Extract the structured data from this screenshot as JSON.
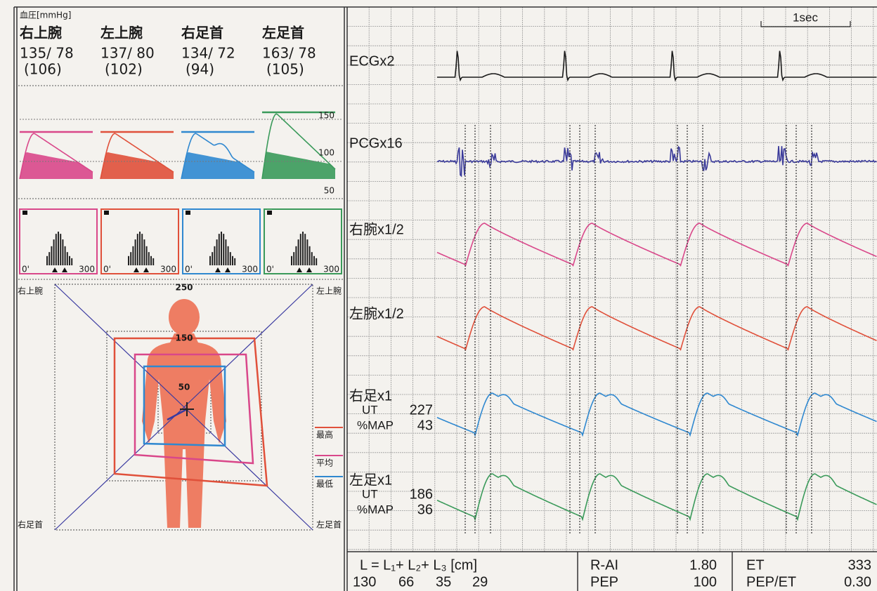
{
  "header": {
    "title": "血圧[mmHg]"
  },
  "limbs": [
    {
      "name": "右上腕",
      "pressure": "135/ 78",
      "mean": "(106)",
      "color": "#d9478a"
    },
    {
      "name": "左上腕",
      "pressure": "137/ 80",
      "mean": "(102)",
      "color": "#e0503a"
    },
    {
      "name": "右足首",
      "pressure": "134/ 72",
      "mean": "(94)",
      "color": "#2f88d0"
    },
    {
      "name": "左足首",
      "pressure": "163/ 78",
      "mean": "(105)",
      "color": "#3a9a5a"
    }
  ],
  "waveform_scale": [
    "150",
    "100",
    "50"
  ],
  "histogram_axis": {
    "start": "0'",
    "end": "300"
  },
  "radar": {
    "corners": [
      "右上腕",
      "左上腕",
      "右足首",
      "左足首"
    ],
    "scale": [
      "250",
      "150",
      "50"
    ],
    "legend": [
      {
        "label": "最高",
        "color": "#e0503a"
      },
      {
        "label": "平均",
        "color": "#d9478a"
      },
      {
        "label": "最低",
        "color": "#2f88d0"
      }
    ]
  },
  "traces": {
    "time_scale": "1sec",
    "items": [
      {
        "label": "ECGx2",
        "color": "#1a1a1a"
      },
      {
        "label": "PCGx16",
        "color": "#3a3a9a"
      },
      {
        "label": "右腕x1/2",
        "color": "#d9478a"
      },
      {
        "label": "左腕x1/2",
        "color": "#e0503a"
      },
      {
        "label": "右足x1",
        "color": "#2f88d0",
        "ut_label": "UT",
        "ut": "227",
        "map_label": "%MAP",
        "map": "43"
      },
      {
        "label": "左足x1",
        "color": "#3a9a5a",
        "ut_label": "UT",
        "ut": "186",
        "map_label": "%MAP",
        "map": "36"
      }
    ]
  },
  "summary": {
    "formula": "L = L₁+ L₂+ L₃ [cm]",
    "lengths": [
      "130",
      "66",
      "35",
      "29"
    ],
    "rai_label": "R-AI",
    "rai": "1.80",
    "pep_label": "PEP",
    "pep": "100",
    "et_label": "ET",
    "et": "333",
    "ratio_label": "PEP/ET",
    "ratio": "0.30"
  }
}
